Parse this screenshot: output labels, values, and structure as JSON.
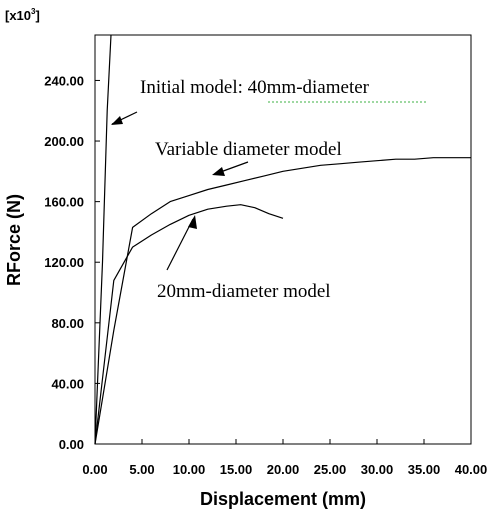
{
  "chart_data": {
    "type": "line",
    "xlabel": "Displacement (mm)",
    "ylabel": "RForce (N)",
    "y_unit_base": "[x10",
    "y_unit_exp": "3",
    "y_unit_close": "]",
    "xlim": [
      0,
      40
    ],
    "ylim": [
      0,
      270
    ],
    "x_ticks": [
      "0.00",
      "5.00",
      "10.00",
      "15.00",
      "20.00",
      "25.00",
      "30.00",
      "35.00",
      "40.00"
    ],
    "y_ticks": [
      "0.00",
      "40.00",
      "80.00",
      "120.00",
      "160.00",
      "200.00",
      "240.00"
    ],
    "x_tick_values": [
      0,
      5,
      10,
      15,
      20,
      25,
      30,
      35,
      40
    ],
    "y_tick_values": [
      0,
      40,
      80,
      120,
      160,
      200,
      240
    ],
    "grid": false,
    "series": [
      {
        "name": "Initial model: 40mm-diameter",
        "x": [
          0,
          0.8,
          1.3,
          1.7
        ],
        "y": [
          0,
          120,
          220,
          270
        ]
      },
      {
        "name": "Variable diameter model",
        "x": [
          0,
          2.0,
          4.0,
          6.0,
          8.0,
          10.0,
          12.0,
          14.0,
          16.0,
          18.0,
          20.0,
          22.0,
          24.0,
          26.0,
          28.0,
          30.0,
          32.0,
          34.0,
          36.0,
          38.0,
          40.0
        ],
        "y": [
          0,
          75,
          143,
          152,
          160,
          164,
          168,
          171,
          174,
          177,
          180,
          182,
          184,
          185,
          186,
          187,
          188,
          188,
          189,
          189,
          189
        ]
      },
      {
        "name": "20mm-diameter model",
        "x": [
          0,
          2.0,
          4.0,
          6.0,
          8.0,
          10.0,
          12.0,
          14.0,
          15.5,
          17.0,
          18.5,
          20.0
        ],
        "y": [
          0,
          108,
          130,
          138,
          145,
          151,
          155,
          157,
          158,
          156,
          152,
          149
        ]
      }
    ],
    "annotations": [
      {
        "text": "Initial model: 40mm-diameter"
      },
      {
        "text": "Variable diameter model"
      },
      {
        "text": "20mm-diameter model"
      }
    ]
  }
}
